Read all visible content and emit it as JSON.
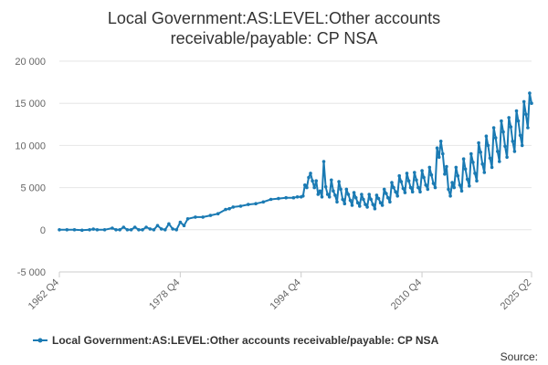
{
  "chart_data": {
    "type": "line",
    "title_lines": [
      "Local Government:AS:LEVEL:Other accounts",
      "receivable/payable: CP NSA"
    ],
    "y_ticks": [
      "20 000",
      "15 000",
      "10 000",
      "5 000",
      "0",
      "-5 000"
    ],
    "y_tick_values": [
      20000,
      15000,
      10000,
      5000,
      0,
      -5000
    ],
    "ylim": [
      -5000,
      20000
    ],
    "x_ticks": [
      "1962 Q4",
      "1978 Q4",
      "1994 Q4",
      "2010 Q4",
      "2025 Q2"
    ],
    "x_tick_positions": [
      0,
      64,
      128,
      192,
      250
    ],
    "x_range": [
      0,
      250
    ],
    "series": [
      {
        "name": "Local Government:AS:LEVEL:Other accounts receivable/payable: CP NSA",
        "color": "#1a7ab3",
        "points": [
          [
            0,
            0
          ],
          [
            4,
            0
          ],
          [
            8,
            0
          ],
          [
            12,
            -50
          ],
          [
            16,
            0
          ],
          [
            18,
            80
          ],
          [
            20,
            0
          ],
          [
            24,
            0
          ],
          [
            28,
            200
          ],
          [
            30,
            0
          ],
          [
            32,
            0
          ],
          [
            34,
            300
          ],
          [
            36,
            0
          ],
          [
            38,
            0
          ],
          [
            40,
            300
          ],
          [
            42,
            0
          ],
          [
            44,
            0
          ],
          [
            46,
            300
          ],
          [
            48,
            100
          ],
          [
            50,
            0
          ],
          [
            52,
            500
          ],
          [
            54,
            100
          ],
          [
            56,
            0
          ],
          [
            58,
            700
          ],
          [
            60,
            100
          ],
          [
            62,
            0
          ],
          [
            64,
            900
          ],
          [
            66,
            500
          ],
          [
            68,
            1300
          ],
          [
            72,
            1500
          ],
          [
            76,
            1500
          ],
          [
            80,
            1700
          ],
          [
            84,
            1900
          ],
          [
            88,
            2400
          ],
          [
            90,
            2500
          ],
          [
            92,
            2700
          ],
          [
            96,
            2800
          ],
          [
            100,
            3000
          ],
          [
            104,
            3100
          ],
          [
            108,
            3300
          ],
          [
            112,
            3600
          ],
          [
            116,
            3700
          ],
          [
            120,
            3800
          ],
          [
            124,
            3800
          ],
          [
            126,
            3900
          ],
          [
            128,
            3900
          ],
          [
            129,
            4000
          ],
          [
            130,
            5300
          ],
          [
            131,
            5000
          ],
          [
            132,
            6200
          ],
          [
            133,
            6700
          ],
          [
            134,
            5800
          ],
          [
            135,
            5000
          ],
          [
            136,
            5800
          ],
          [
            137,
            4200
          ],
          [
            138,
            4600
          ],
          [
            139,
            3900
          ],
          [
            140,
            8100
          ],
          [
            141,
            5100
          ],
          [
            142,
            4200
          ],
          [
            143,
            3900
          ],
          [
            144,
            5900
          ],
          [
            145,
            4600
          ],
          [
            146,
            4100
          ],
          [
            147,
            3300
          ],
          [
            148,
            5700
          ],
          [
            149,
            4800
          ],
          [
            150,
            3600
          ],
          [
            151,
            3100
          ],
          [
            152,
            4800
          ],
          [
            153,
            4200
          ],
          [
            154,
            3500
          ],
          [
            155,
            2900
          ],
          [
            156,
            4400
          ],
          [
            157,
            3800
          ],
          [
            158,
            3200
          ],
          [
            159,
            2800
          ],
          [
            160,
            4200
          ],
          [
            161,
            3600
          ],
          [
            162,
            3000
          ],
          [
            163,
            2700
          ],
          [
            164,
            4200
          ],
          [
            165,
            3600
          ],
          [
            166,
            3000
          ],
          [
            167,
            2500
          ],
          [
            168,
            4100
          ],
          [
            169,
            3700
          ],
          [
            170,
            3200
          ],
          [
            171,
            2900
          ],
          [
            172,
            4800
          ],
          [
            173,
            4300
          ],
          [
            174,
            3800
          ],
          [
            175,
            3300
          ],
          [
            176,
            5600
          ],
          [
            177,
            5000
          ],
          [
            178,
            4500
          ],
          [
            179,
            4000
          ],
          [
            180,
            6400
          ],
          [
            181,
            5700
          ],
          [
            182,
            4900
          ],
          [
            183,
            4400
          ],
          [
            184,
            6700
          ],
          [
            185,
            5800
          ],
          [
            186,
            5000
          ],
          [
            187,
            4500
          ],
          [
            188,
            6800
          ],
          [
            189,
            5900
          ],
          [
            190,
            5000
          ],
          [
            191,
            4500
          ],
          [
            192,
            7000
          ],
          [
            193,
            6200
          ],
          [
            194,
            5300
          ],
          [
            195,
            4800
          ],
          [
            196,
            7400
          ],
          [
            197,
            6500
          ],
          [
            198,
            5500
          ],
          [
            199,
            5000
          ],
          [
            200,
            9700
          ],
          [
            201,
            8600
          ],
          [
            202,
            10500
          ],
          [
            203,
            9000
          ],
          [
            204,
            6600
          ],
          [
            205,
            7500
          ],
          [
            206,
            4800
          ],
          [
            207,
            4000
          ],
          [
            208,
            5600
          ],
          [
            209,
            5000
          ],
          [
            210,
            7400
          ],
          [
            211,
            6400
          ],
          [
            212,
            5300
          ],
          [
            213,
            4600
          ],
          [
            214,
            8400
          ],
          [
            215,
            7200
          ],
          [
            216,
            6000
          ],
          [
            217,
            5200
          ],
          [
            218,
            9000
          ],
          [
            219,
            8000
          ],
          [
            220,
            6700
          ],
          [
            221,
            5800
          ],
          [
            222,
            10300
          ],
          [
            223,
            9200
          ],
          [
            224,
            7800
          ],
          [
            225,
            6800
          ],
          [
            226,
            11100
          ],
          [
            227,
            10000
          ],
          [
            228,
            8500
          ],
          [
            229,
            7400
          ],
          [
            230,
            12100
          ],
          [
            231,
            10900
          ],
          [
            232,
            9300
          ],
          [
            233,
            8100
          ],
          [
            234,
            12900
          ],
          [
            235,
            11600
          ],
          [
            236,
            9900
          ],
          [
            237,
            8600
          ],
          [
            238,
            13300
          ],
          [
            239,
            12200
          ],
          [
            240,
            10500
          ],
          [
            241,
            9300
          ],
          [
            242,
            14100
          ],
          [
            243,
            12900
          ],
          [
            244,
            11200
          ],
          [
            245,
            10000
          ],
          [
            246,
            15200
          ],
          [
            247,
            13700
          ],
          [
            248,
            12100
          ],
          [
            249,
            16200
          ],
          [
            250,
            15000
          ]
        ]
      }
    ],
    "legend": {
      "label": "Local Government:AS:LEVEL:Other accounts receivable/payable: CP NSA",
      "position": "bottom"
    },
    "source_label": "Source:"
  }
}
